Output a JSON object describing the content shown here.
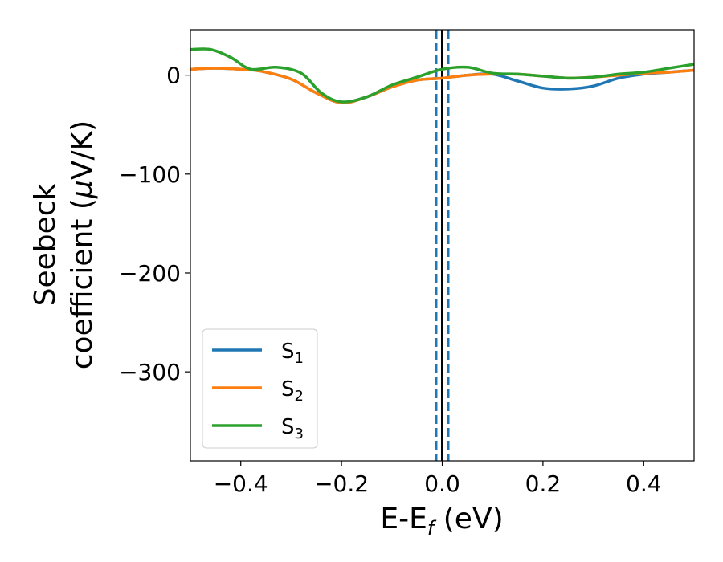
{
  "chart_data": {
    "type": "line",
    "xlabel": "E-E",
    "xlabel_sub": "f",
    "xlabel_unit": " (eV)",
    "ylabel_line1": "Seebeck",
    "ylabel_line2": "coefficient  (",
    "ylabel_mu": "μ",
    "ylabel_unit": "V/K)",
    "xlim": [
      -0.5,
      0.5
    ],
    "ylim": [
      -390,
      46
    ],
    "xticks": [
      -0.4,
      -0.2,
      0.0,
      0.2,
      0.4
    ],
    "xtick_labels": [
      "−0.4",
      "−0.2",
      "0.0",
      "0.2",
      "0.4"
    ],
    "yticks": [
      0,
      -100,
      -200,
      -300
    ],
    "ytick_labels": [
      "0",
      "−100",
      "−200",
      "−300"
    ],
    "grid": false,
    "legend_position": "lower-left",
    "vlines": [
      {
        "x": 0.0,
        "color": "#000000",
        "style": "solid"
      },
      {
        "x": -0.012,
        "color": "#1f77b4",
        "style": "dashed"
      },
      {
        "x": 0.012,
        "color": "#1f77b4",
        "style": "dashed"
      }
    ],
    "series": [
      {
        "name": "S",
        "sub": "1",
        "color": "#1f77b4",
        "x": [
          -0.5,
          -0.45,
          -0.4,
          -0.36,
          -0.3,
          -0.25,
          -0.2,
          -0.15,
          -0.1,
          -0.05,
          0.0,
          0.05,
          0.1,
          0.15,
          0.2,
          0.25,
          0.3,
          0.35,
          0.4,
          0.45,
          0.5
        ],
        "y": [
          6,
          7,
          6,
          4,
          -4,
          -18,
          -28,
          -22,
          -12,
          -5,
          -3,
          0,
          1,
          -6,
          -13,
          -14,
          -11,
          -3,
          1,
          3,
          5
        ]
      },
      {
        "name": "S",
        "sub": "2",
        "color": "#ff7f0e",
        "x": [
          -0.5,
          -0.45,
          -0.4,
          -0.36,
          -0.3,
          -0.25,
          -0.2,
          -0.15,
          -0.1,
          -0.05,
          0.0,
          0.05,
          0.1,
          0.15,
          0.2,
          0.25,
          0.3,
          0.35,
          0.4,
          0.45,
          0.5
        ],
        "y": [
          6,
          7,
          6,
          4,
          -4,
          -18,
          -28,
          -22,
          -12,
          -5,
          -3,
          0,
          1,
          1,
          -1,
          -3,
          -2,
          0,
          2,
          3,
          5
        ]
      },
      {
        "name": "S",
        "sub": "3",
        "color": "#2ca02c",
        "x": [
          -0.5,
          -0.46,
          -0.42,
          -0.38,
          -0.33,
          -0.28,
          -0.24,
          -0.2,
          -0.15,
          -0.1,
          -0.05,
          0.0,
          0.05,
          0.1,
          0.15,
          0.2,
          0.25,
          0.3,
          0.35,
          0.4,
          0.45,
          0.5
        ],
        "y": [
          26,
          26,
          18,
          6,
          8,
          2,
          -18,
          -27,
          -22,
          -10,
          -2,
          6,
          8,
          2,
          1,
          -1,
          -3,
          -2,
          1,
          3,
          7,
          11
        ]
      }
    ]
  }
}
